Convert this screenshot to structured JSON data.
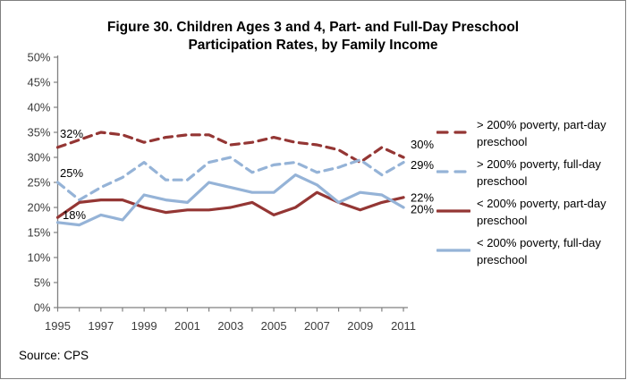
{
  "chart_data": {
    "type": "line",
    "title": "Figure 30. Children Ages 3 and 4, Part- and Full-Day Preschool Participation Rates, by Family Income",
    "title_lines": [
      "Figure 30. Children Ages 3 and 4, Part- and Full-Day Preschool",
      "Participation Rates, by Family Income"
    ],
    "x": [
      1995,
      1996,
      1997,
      1998,
      1999,
      2000,
      2001,
      2002,
      2003,
      2004,
      2005,
      2006,
      2007,
      2008,
      2009,
      2010,
      2011
    ],
    "x_tick_labels": [
      "1995",
      "1997",
      "1999",
      "2001",
      "2003",
      "2005",
      "2007",
      "2009",
      "2011"
    ],
    "ylim": [
      0,
      50
    ],
    "y_tick_step": 5,
    "y_tick_labels": [
      "0%",
      "5%",
      "10%",
      "15%",
      "20%",
      "25%",
      "30%",
      "35%",
      "40%",
      "45%",
      "50%"
    ],
    "grid": false,
    "legend_position": "right",
    "series": [
      {
        "name": "> 200% poverty, part-day preschool",
        "color": "#943634",
        "dash": true,
        "values": [
          32,
          33.5,
          35,
          34.5,
          33,
          34,
          34.5,
          34.5,
          32.5,
          33,
          34,
          33,
          32.5,
          31.5,
          29,
          32,
          30
        ],
        "start_label": "32%",
        "end_label": "30%"
      },
      {
        "name": "> 200% poverty, full-day preschool",
        "color": "#95B3D7",
        "dash": true,
        "values": [
          25,
          21.5,
          24,
          26,
          29,
          25.5,
          25.5,
          29,
          30,
          27,
          28.5,
          29,
          27,
          28,
          29.5,
          26.5,
          29
        ],
        "start_label": "25%",
        "end_label": "29%"
      },
      {
        "name": "< 200% poverty, part-day preschool",
        "color": "#943634",
        "dash": false,
        "values": [
          18,
          21,
          21.5,
          21.5,
          20,
          19,
          19.5,
          19.5,
          20,
          21,
          18.5,
          20,
          23,
          21,
          19.5,
          21,
          22
        ],
        "start_label": "18%",
        "end_label": "22%"
      },
      {
        "name": "< 200% poverty, full-day preschool",
        "color": "#95B3D7",
        "dash": false,
        "values": [
          17,
          16.5,
          18.5,
          17.5,
          22.5,
          21.5,
          21,
          25,
          24,
          23,
          23,
          26.5,
          24.5,
          21,
          23,
          22.5,
          20
        ],
        "start_label": "",
        "end_label": "20%"
      }
    ]
  },
  "source": "Source: CPS",
  "colors": {
    "dark_red": "#943634",
    "light_blue": "#95B3D7",
    "axis": "#808080",
    "text": "#000000"
  }
}
